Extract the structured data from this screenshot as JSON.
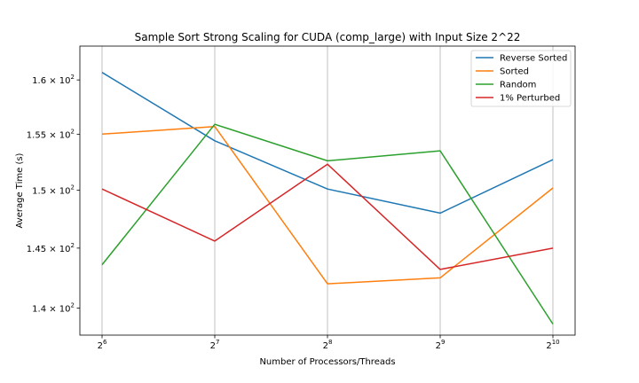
{
  "chart_data": {
    "type": "line",
    "title": "Sample Sort Strong Scaling for CUDA (comp_large) with Input Size 2^22",
    "xlabel": "Number of Processors/Threads",
    "ylabel": "Average Time (s)",
    "x_scale": "log2",
    "y_scale": "log",
    "x": [
      64,
      128,
      256,
      512,
      1024
    ],
    "xticks": [
      {
        "value": 64,
        "base": "2",
        "exp": "6"
      },
      {
        "value": 128,
        "base": "2",
        "exp": "7"
      },
      {
        "value": 256,
        "base": "2",
        "exp": "8"
      },
      {
        "value": 512,
        "base": "2",
        "exp": "9"
      },
      {
        "value": 1024,
        "base": "2",
        "exp": "10"
      }
    ],
    "yticks": [
      {
        "value": 140,
        "mant": "1.4",
        "exp": "2"
      },
      {
        "value": 145,
        "mant": "1.45",
        "exp": "2"
      },
      {
        "value": 150,
        "mant": "1.5",
        "exp": "2"
      },
      {
        "value": 155,
        "mant": "1.55",
        "exp": "2"
      },
      {
        "value": 160,
        "mant": "1.6",
        "exp": "2"
      }
    ],
    "ylim": [
      137.8,
      163.2
    ],
    "grid": "vertical",
    "legend_position": "upper right",
    "series": [
      {
        "name": "Reverse Sorted",
        "color": "#1f77b4",
        "values": [
          160.7,
          154.4,
          150.1,
          148.0,
          152.7
        ]
      },
      {
        "name": "Sorted",
        "color": "#ff7f0e",
        "values": [
          155.0,
          155.7,
          142.0,
          142.5,
          150.2
        ]
      },
      {
        "name": "Random",
        "color": "#2ca02c",
        "values": [
          143.6,
          155.9,
          152.6,
          153.5,
          138.7
        ]
      },
      {
        "name": "1% Perturbed",
        "color": "#d62728",
        "values": [
          150.1,
          145.6,
          152.3,
          143.2,
          145.0
        ]
      }
    ]
  }
}
